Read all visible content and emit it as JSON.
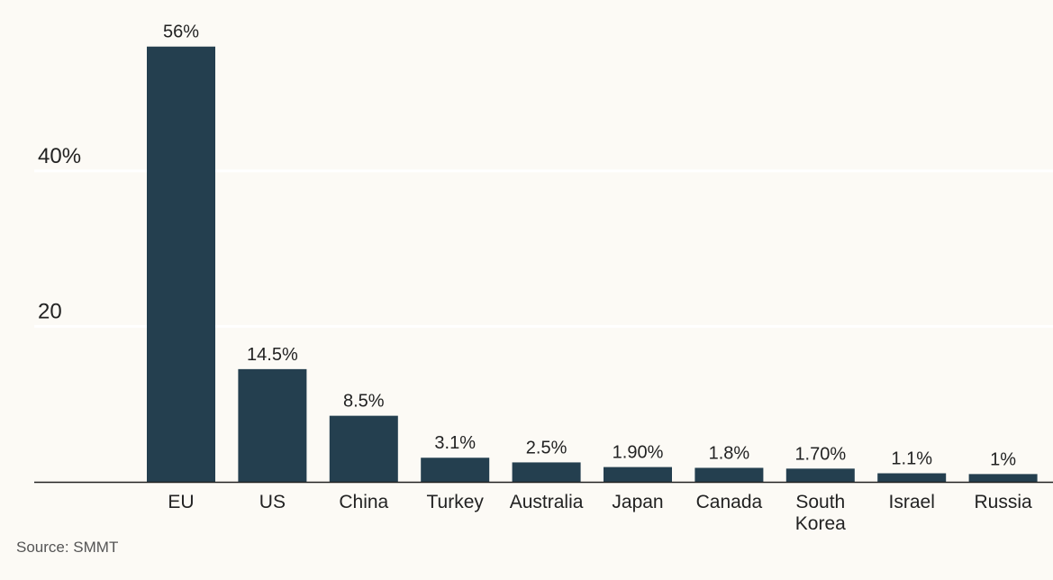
{
  "chart_data": {
    "type": "bar",
    "title": "",
    "xlabel": "",
    "ylabel": "",
    "categories": [
      "EU",
      "US",
      "China",
      "Turkey",
      "Australia",
      "Japan",
      "Canada",
      "South Korea",
      "Israel",
      "Russia"
    ],
    "category_lines": [
      [
        "EU"
      ],
      [
        "US"
      ],
      [
        "China"
      ],
      [
        "Turkey"
      ],
      [
        "Australia"
      ],
      [
        "Japan"
      ],
      [
        "Canada"
      ],
      [
        "South",
        "Korea"
      ],
      [
        "Israel"
      ],
      [
        "Russia"
      ]
    ],
    "values": [
      56,
      14.5,
      8.5,
      3.1,
      2.5,
      1.9,
      1.8,
      1.7,
      1.1,
      1
    ],
    "value_labels": [
      "56%",
      "14.5%",
      "8.5%",
      "3.1%",
      "2.5%",
      "1.90%",
      "1.8%",
      "1.70%",
      "1.1%",
      "1%"
    ],
    "y_ticks": [
      {
        "value": 20,
        "label": "20"
      },
      {
        "value": 40,
        "label": "40%"
      }
    ],
    "ylim": [
      0,
      60
    ],
    "grid": true,
    "legend": "none",
    "bar_color": "#243f4f",
    "background_color": "#fcfaf5",
    "grid_color": "#ffffff",
    "axis_color": "#222222"
  },
  "source": "Source: SMMT"
}
